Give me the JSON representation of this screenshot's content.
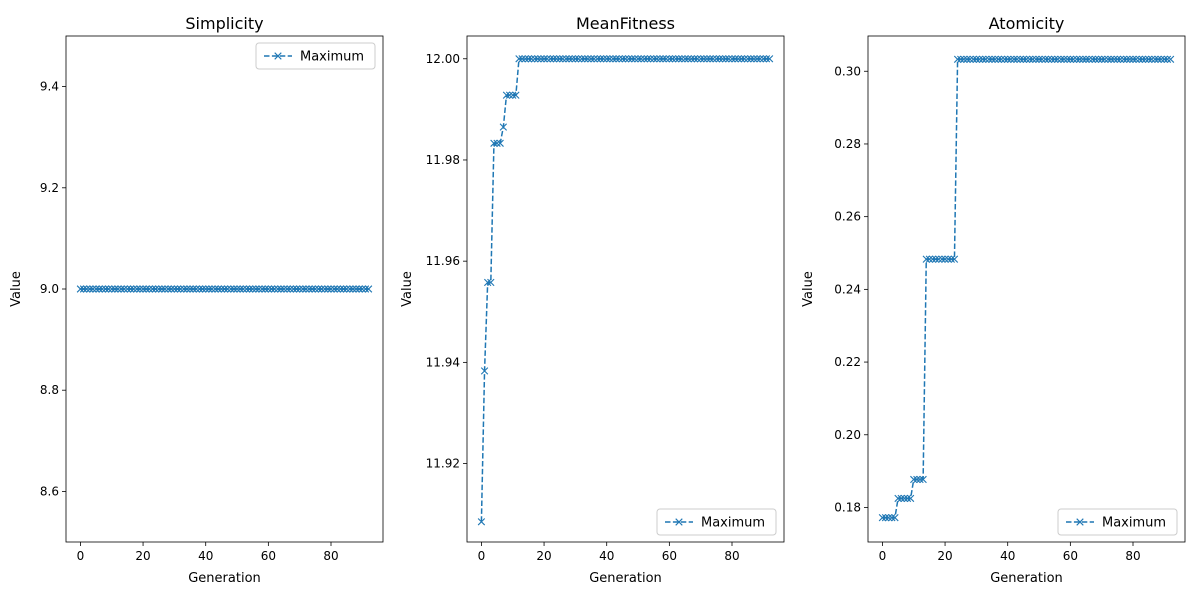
{
  "chart_data": [
    {
      "type": "line",
      "title": "Simplicity",
      "xlabel": "Generation",
      "ylabel": "Value",
      "xlim": [
        -4.6,
        96.6
      ],
      "ylim": [
        8.5,
        9.5
      ],
      "xticks": [
        0,
        20,
        40,
        60,
        80
      ],
      "yticks": [
        8.6,
        8.8,
        9.0,
        9.2,
        9.4
      ],
      "ytick_labels": [
        "8.6",
        "8.8",
        "9.0",
        "9.2",
        "9.4"
      ],
      "legend_location": "upper right",
      "series": [
        {
          "name": "Maximum",
          "color": "#1f77b4",
          "linestyle": "dashed",
          "marker": "x",
          "steps": [
            [
              0,
              9.0
            ]
          ]
        }
      ]
    },
    {
      "type": "line",
      "title": "MeanFitness",
      "xlabel": "Generation",
      "ylabel": "Value",
      "xlim": [
        -4.6,
        96.6
      ],
      "ylim": [
        11.9045,
        12.0045
      ],
      "xticks": [
        0,
        20,
        40,
        60,
        80
      ],
      "yticks": [
        11.92,
        11.94,
        11.96,
        11.98,
        12.0
      ],
      "ytick_labels": [
        "11.92",
        "11.94",
        "11.96",
        "11.98",
        "12.00"
      ],
      "legend_location": "lower right",
      "series": [
        {
          "name": "Maximum",
          "color": "#1f77b4",
          "linestyle": "dashed",
          "marker": "x",
          "steps": [
            [
              0,
              11.9085
            ],
            [
              1,
              11.9383
            ],
            [
              2,
              11.9558
            ],
            [
              4,
              11.9833
            ],
            [
              7,
              11.9865
            ],
            [
              8,
              11.9928
            ],
            [
              12,
              12.0
            ]
          ]
        }
      ]
    },
    {
      "type": "line",
      "title": "Atomicity",
      "xlabel": "Generation",
      "ylabel": "Value",
      "xlim": [
        -4.6,
        96.6
      ],
      "ylim": [
        0.1705,
        0.3097
      ],
      "xticks": [
        0,
        20,
        40,
        60,
        80
      ],
      "yticks": [
        0.18,
        0.2,
        0.22,
        0.24,
        0.26,
        0.28,
        0.3
      ],
      "ytick_labels": [
        "0.18",
        "0.20",
        "0.22",
        "0.24",
        "0.26",
        "0.28",
        "0.30"
      ],
      "legend_location": "lower right",
      "series": [
        {
          "name": "Maximum",
          "color": "#1f77b4",
          "linestyle": "dashed",
          "marker": "x",
          "steps": [
            [
              0,
              0.1772
            ],
            [
              5,
              0.1825
            ],
            [
              10,
              0.1877
            ],
            [
              14,
              0.2483
            ],
            [
              24,
              0.3033
            ]
          ]
        }
      ]
    }
  ],
  "generations": {
    "first": 0,
    "last": 92
  }
}
